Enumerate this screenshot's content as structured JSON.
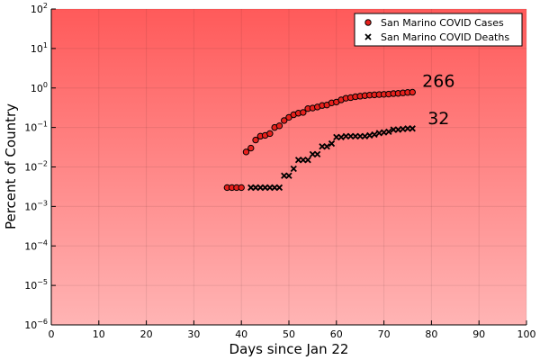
{
  "chart_data": {
    "type": "scatter",
    "xlabel": "Days since Jan 22",
    "ylabel": "Percent of Country",
    "xlim": [
      0,
      100
    ],
    "ylim_log10": [
      -6,
      2
    ],
    "y_scale": "log10",
    "x_ticks": [
      0,
      10,
      20,
      30,
      40,
      50,
      60,
      70,
      80,
      90,
      100
    ],
    "y_ticks": [
      "10^-6",
      "10^-5",
      "10^-4",
      "10^-3",
      "10^-2",
      "10^-1",
      "10^0",
      "10^1",
      "10^2"
    ],
    "grid": true,
    "legend_position": "top-right",
    "background_gradient": {
      "top": "#ff5a5a",
      "bottom": "#ffb4b4"
    },
    "series": [
      {
        "name": "San Marino COVID Cases",
        "marker": "circle",
        "color": "#e8201c",
        "x": [
          37,
          38,
          39,
          40,
          41,
          42,
          43,
          44,
          45,
          46,
          47,
          48,
          49,
          50,
          51,
          52,
          53,
          54,
          55,
          56,
          57,
          58,
          59,
          60,
          61,
          62,
          63,
          64,
          65,
          66,
          67,
          68,
          69,
          70,
          71,
          72,
          73,
          74,
          75,
          76
        ],
        "y": [
          0.003,
          0.003,
          0.003,
          0.003,
          0.024,
          0.03,
          0.048,
          0.06,
          0.063,
          0.07,
          0.1,
          0.11,
          0.15,
          0.18,
          0.21,
          0.23,
          0.24,
          0.3,
          0.31,
          0.33,
          0.36,
          0.37,
          0.42,
          0.44,
          0.5,
          0.55,
          0.57,
          0.6,
          0.62,
          0.64,
          0.66,
          0.67,
          0.68,
          0.69,
          0.7,
          0.72,
          0.73,
          0.75,
          0.77,
          0.78
        ]
      },
      {
        "name": "San Marino COVID Deaths",
        "marker": "x",
        "color": "#000000",
        "x": [
          42,
          43,
          44,
          45,
          46,
          47,
          48,
          49,
          50,
          51,
          52,
          53,
          54,
          55,
          56,
          57,
          58,
          59,
          60,
          61,
          62,
          63,
          64,
          65,
          66,
          67,
          68,
          69,
          70,
          71,
          72,
          73,
          74,
          75,
          76
        ],
        "y": [
          0.003,
          0.003,
          0.003,
          0.003,
          0.003,
          0.003,
          0.003,
          0.006,
          0.006,
          0.009,
          0.015,
          0.015,
          0.015,
          0.021,
          0.021,
          0.033,
          0.033,
          0.039,
          0.057,
          0.057,
          0.06,
          0.06,
          0.06,
          0.06,
          0.06,
          0.063,
          0.066,
          0.072,
          0.075,
          0.078,
          0.088,
          0.088,
          0.091,
          0.094,
          0.094
        ]
      }
    ],
    "annotations": [
      {
        "text": "266",
        "x": 81.5,
        "y": 1.55
      },
      {
        "text": "32",
        "x": 81.5,
        "y": 0.175
      }
    ]
  }
}
